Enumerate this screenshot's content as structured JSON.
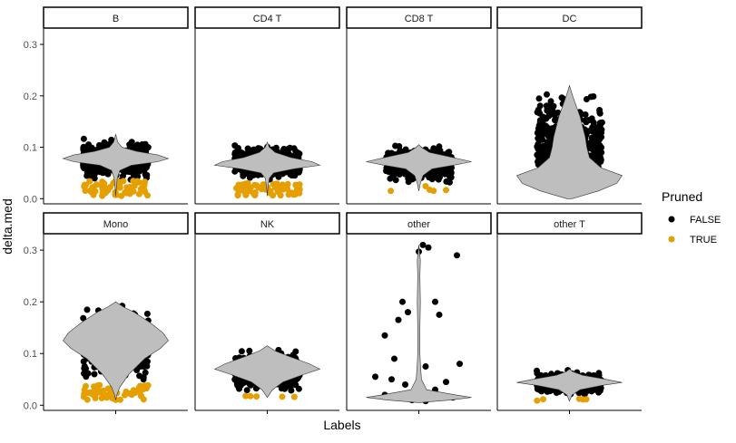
{
  "chart_data": {
    "type": "violin",
    "title": "",
    "xlabel": "Labels",
    "ylabel": "delta.med",
    "ylim": [
      -0.01,
      0.33
    ],
    "yticks": [
      0.0,
      0.1,
      0.2,
      0.3
    ],
    "ytick_labels": [
      "0.0",
      "0.1",
      "0.2",
      "0.3"
    ],
    "grid": false,
    "legend": {
      "title": "Pruned",
      "position": "right",
      "entries": [
        {
          "label": "FALSE",
          "color": "#000000"
        },
        {
          "label": "TRUE",
          "color": "#E69F00"
        }
      ]
    },
    "colors": {
      "violin_fill": "#BEBEBE",
      "strip_fill": "#FFFFFF",
      "axis": "#000000"
    },
    "panels": [
      {
        "label": "B",
        "pruned_false_range": [
          0.03,
          0.12
        ],
        "pruned_true_range": [
          0.005,
          0.035
        ],
        "violin_profile": [
          [
            0.005,
            0.0
          ],
          [
            0.02,
            0.01
          ],
          [
            0.04,
            0.03
          ],
          [
            0.055,
            0.08
          ],
          [
            0.065,
            0.3
          ],
          [
            0.072,
            0.8
          ],
          [
            0.078,
            1.0
          ],
          [
            0.085,
            0.8
          ],
          [
            0.092,
            0.4
          ],
          [
            0.1,
            0.12
          ],
          [
            0.11,
            0.04
          ],
          [
            0.125,
            0.0
          ]
        ]
      },
      {
        "label": "CD4 T",
        "pruned_false_range": [
          0.03,
          0.11
        ],
        "pruned_true_range": [
          0.005,
          0.03
        ],
        "violin_profile": [
          [
            0.005,
            0.0
          ],
          [
            0.02,
            0.01
          ],
          [
            0.04,
            0.04
          ],
          [
            0.05,
            0.12
          ],
          [
            0.058,
            0.5
          ],
          [
            0.065,
            1.0
          ],
          [
            0.072,
            0.85
          ],
          [
            0.08,
            0.45
          ],
          [
            0.09,
            0.15
          ],
          [
            0.1,
            0.04
          ],
          [
            0.11,
            0.0
          ]
        ]
      },
      {
        "label": "CD8 T",
        "pruned_false_range": [
          0.025,
          0.11
        ],
        "pruned_true_range": [
          0.015,
          0.025
        ],
        "violin_profile": [
          [
            0.015,
            0.0
          ],
          [
            0.03,
            0.03
          ],
          [
            0.045,
            0.08
          ],
          [
            0.058,
            0.25
          ],
          [
            0.066,
            0.7
          ],
          [
            0.072,
            1.0
          ],
          [
            0.08,
            0.65
          ],
          [
            0.09,
            0.2
          ],
          [
            0.1,
            0.05
          ],
          [
            0.105,
            0.0
          ]
        ]
      },
      {
        "label": "DC",
        "pruned_false_range": [
          0.0,
          0.22
        ],
        "pruned_true_range": [],
        "violin_profile": [
          [
            0.0,
            0.05
          ],
          [
            0.015,
            0.55
          ],
          [
            0.03,
            0.9
          ],
          [
            0.045,
            1.0
          ],
          [
            0.06,
            0.6
          ],
          [
            0.08,
            0.38
          ],
          [
            0.1,
            0.33
          ],
          [
            0.12,
            0.3
          ],
          [
            0.14,
            0.25
          ],
          [
            0.16,
            0.2
          ],
          [
            0.18,
            0.13
          ],
          [
            0.2,
            0.06
          ],
          [
            0.22,
            0.0
          ]
        ]
      },
      {
        "label": "Mono",
        "pruned_false_range": [
          0.03,
          0.2
        ],
        "pruned_true_range": [
          0.01,
          0.04
        ],
        "violin_profile": [
          [
            0.01,
            0.0
          ],
          [
            0.02,
            0.02
          ],
          [
            0.035,
            0.08
          ],
          [
            0.06,
            0.25
          ],
          [
            0.09,
            0.55
          ],
          [
            0.11,
            0.85
          ],
          [
            0.125,
            1.0
          ],
          [
            0.14,
            0.9
          ],
          [
            0.16,
            0.65
          ],
          [
            0.18,
            0.35
          ],
          [
            0.19,
            0.15
          ],
          [
            0.2,
            0.0
          ]
        ]
      },
      {
        "label": "NK",
        "pruned_false_range": [
          0.02,
          0.115
        ],
        "pruned_true_range": [
          0.015,
          0.02
        ],
        "violin_profile": [
          [
            0.015,
            0.0
          ],
          [
            0.03,
            0.1
          ],
          [
            0.045,
            0.3
          ],
          [
            0.06,
            0.7
          ],
          [
            0.07,
            1.0
          ],
          [
            0.08,
            0.8
          ],
          [
            0.095,
            0.4
          ],
          [
            0.105,
            0.15
          ],
          [
            0.115,
            0.0
          ]
        ]
      },
      {
        "label": "other",
        "pruned_false_range": [
          0.005,
          0.31
        ],
        "pruned_true_range": [],
        "violin_profile": [
          [
            0.005,
            0.0
          ],
          [
            0.01,
            0.6
          ],
          [
            0.015,
            1.0
          ],
          [
            0.02,
            0.7
          ],
          [
            0.03,
            0.15
          ],
          [
            0.05,
            0.05
          ],
          [
            0.08,
            0.03
          ],
          [
            0.1,
            0.02
          ],
          [
            0.15,
            0.02
          ],
          [
            0.2,
            0.03
          ],
          [
            0.25,
            0.02
          ],
          [
            0.28,
            0.03
          ],
          [
            0.31,
            0.0
          ]
        ],
        "points": [
          [
            0.0,
            0.297
          ],
          [
            0.03,
            0.31
          ],
          [
            0.07,
            0.305
          ],
          [
            0.28,
            0.29
          ],
          [
            -0.12,
            0.2
          ],
          [
            -0.08,
            0.18
          ],
          [
            0.12,
            0.2
          ],
          [
            -0.15,
            0.165
          ],
          [
            0.15,
            0.175
          ],
          [
            -0.25,
            0.135
          ],
          [
            -0.18,
            0.09
          ],
          [
            0.3,
            0.08
          ],
          [
            0.05,
            0.075
          ],
          [
            -0.32,
            0.055
          ],
          [
            -0.2,
            0.05
          ],
          [
            0.2,
            0.045
          ],
          [
            -0.1,
            0.04
          ],
          [
            0.12,
            0.03
          ],
          [
            -0.25,
            0.02
          ],
          [
            0.25,
            0.015
          ],
          [
            -0.05,
            0.01
          ],
          [
            0.05,
            0.008
          ]
        ]
      },
      {
        "label": "other T",
        "pruned_false_range": [
          0.015,
          0.07
        ],
        "pruned_true_range": [
          0.008,
          0.015
        ],
        "violin_profile": [
          [
            0.008,
            0.0
          ],
          [
            0.02,
            0.05
          ],
          [
            0.03,
            0.2
          ],
          [
            0.038,
            0.6
          ],
          [
            0.044,
            1.0
          ],
          [
            0.05,
            0.7
          ],
          [
            0.058,
            0.25
          ],
          [
            0.065,
            0.06
          ],
          [
            0.07,
            0.0
          ]
        ]
      }
    ]
  }
}
